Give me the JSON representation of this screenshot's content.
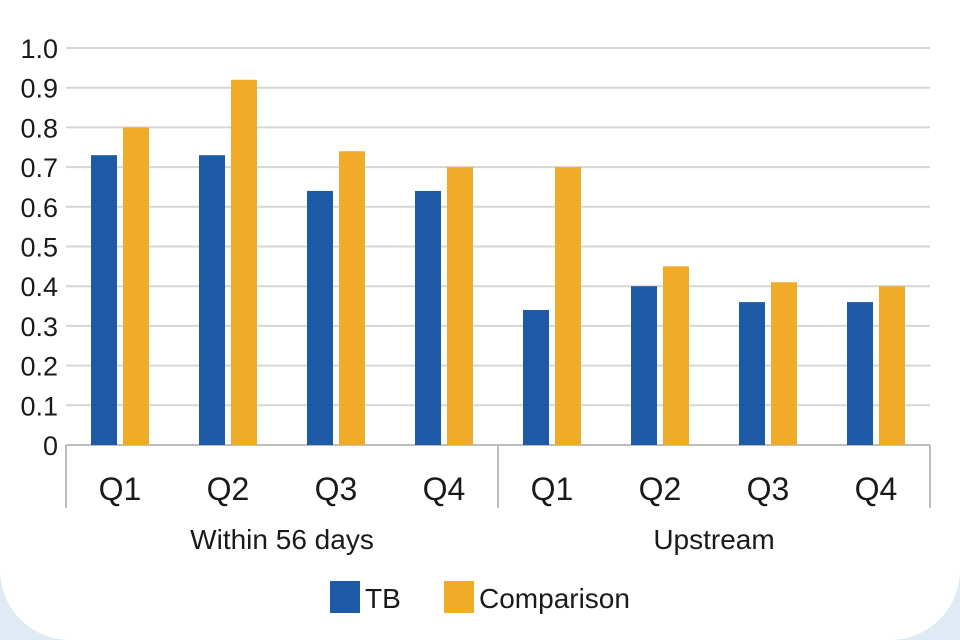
{
  "chart_data": {
    "type": "bar",
    "groups": [
      {
        "label": "Within 56 days",
        "categories": [
          "Q1",
          "Q2",
          "Q3",
          "Q4"
        ]
      },
      {
        "label": "Upstream",
        "categories": [
          "Q1",
          "Q2",
          "Q3",
          "Q4"
        ]
      }
    ],
    "series": [
      {
        "name": "TB",
        "color": "#1f5aa6",
        "values": [
          0.73,
          0.73,
          0.64,
          0.64,
          0.34,
          0.4,
          0.36,
          0.36
        ]
      },
      {
        "name": "Comparison",
        "color": "#f0ac28",
        "values": [
          0.8,
          0.92,
          0.74,
          0.7,
          0.7,
          0.45,
          0.41,
          0.4
        ]
      }
    ],
    "yticks": [
      "0",
      "0.1",
      "0.2",
      "0.3",
      "0.4",
      "0.5",
      "0.6",
      "0.7",
      "0.8",
      "0.9",
      "1.0"
    ],
    "ylim": [
      0,
      1.0
    ],
    "grid": true,
    "legend_position": "bottom"
  }
}
